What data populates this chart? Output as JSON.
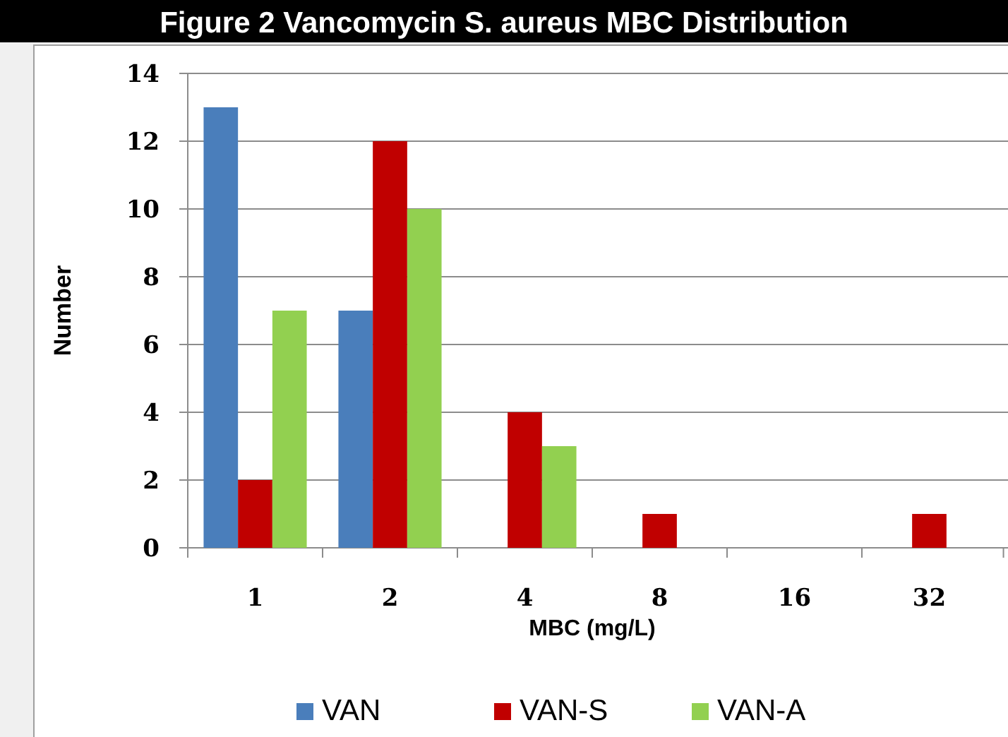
{
  "chart_data": {
    "type": "bar",
    "title": "Figure 2  Vancomycin S. aureus MBC Distribution",
    "xlabel": "MBC (mg/L)",
    "ylabel": "Number",
    "categories": [
      "1",
      "2",
      "4",
      "8",
      "16",
      "32"
    ],
    "series": [
      {
        "name": "VAN",
        "color": "#4a7ebb",
        "values": [
          13,
          7,
          0,
          0,
          0,
          0
        ]
      },
      {
        "name": "VAN-S",
        "color": "#c00000",
        "values": [
          2,
          12,
          4,
          1,
          0,
          1
        ]
      },
      {
        "name": "VAN-A",
        "color": "#92d050",
        "values": [
          7,
          10,
          3,
          0,
          0,
          0
        ]
      }
    ],
    "ylim": [
      0,
      14
    ],
    "yticks": [
      0,
      2,
      4,
      6,
      8,
      10,
      12,
      14
    ],
    "grid": "y",
    "legend": "bottom"
  }
}
